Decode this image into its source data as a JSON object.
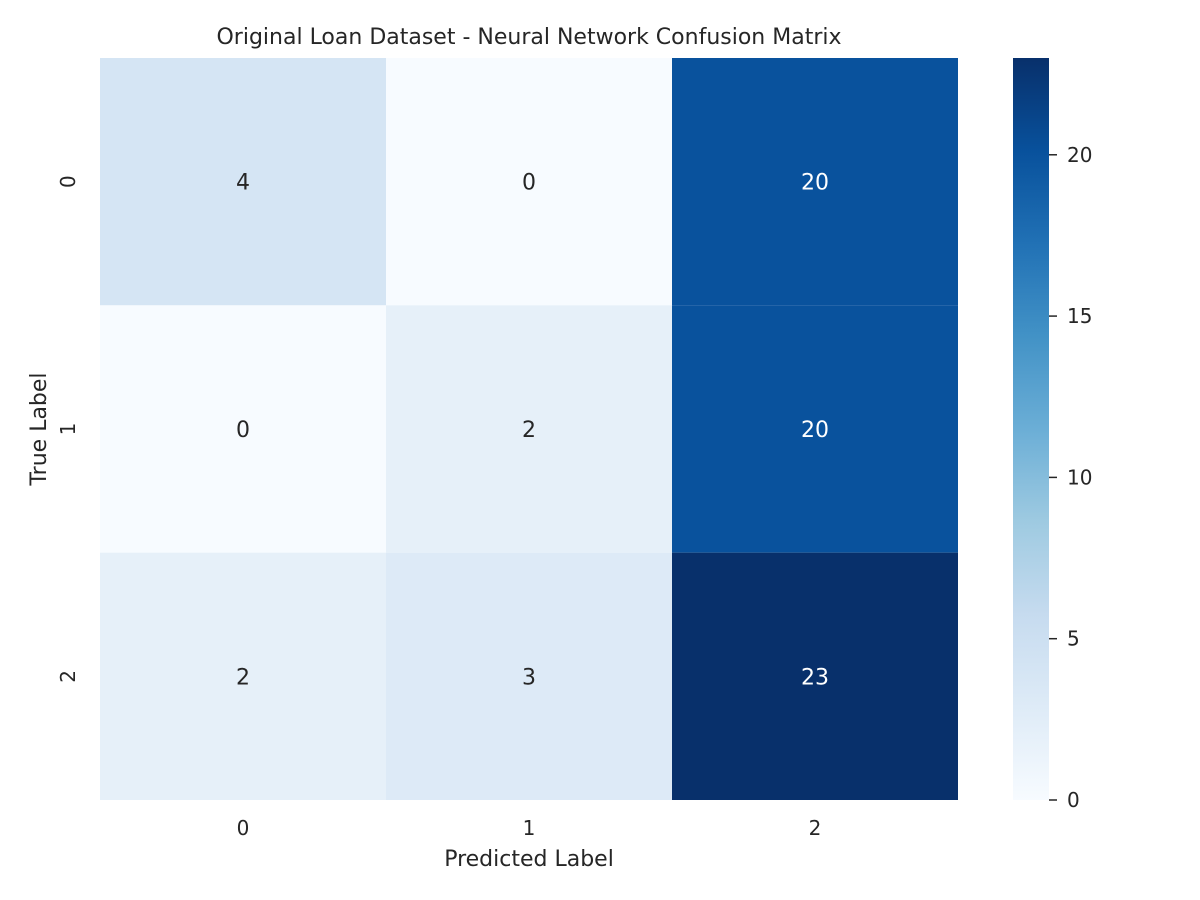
{
  "chart_data": {
    "type": "heatmap",
    "title": "Original Loan Dataset - Neural Network Confusion Matrix",
    "xlabel": "Predicted Label",
    "ylabel": "True Label",
    "x_categories": [
      "0",
      "1",
      "2"
    ],
    "y_categories": [
      "0",
      "1",
      "2"
    ],
    "values": [
      [
        4,
        0,
        20
      ],
      [
        0,
        2,
        20
      ],
      [
        2,
        3,
        23
      ]
    ],
    "colormap": "Blues",
    "color_range": [
      0,
      23
    ],
    "colorbar": {
      "ticks": [
        0,
        5,
        10,
        15,
        20
      ]
    },
    "grid": false,
    "annotations": true
  }
}
